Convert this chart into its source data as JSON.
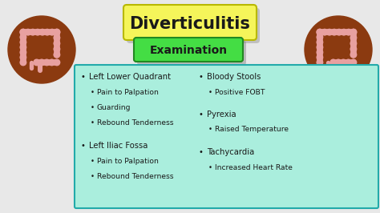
{
  "background_color": "#e8e8e8",
  "title": "Diverticulitis",
  "title_box_color": "#f5f55a",
  "title_box_edge": "#b8b800",
  "subtitle": "Examination",
  "subtitle_box_color": "#44dd44",
  "subtitle_box_edge": "#228822",
  "content_box_color": "#aaeedd",
  "content_box_border": "#22aaaa",
  "text_color": "#1a1a1a",
  "bullet_color": "#1a1a1a",
  "colon_outer": "#8B3a10",
  "colon_inner": "#e8a0a0",
  "title_fontsize": 15,
  "subtitle_fontsize": 10,
  "fs_l0": 7.2,
  "fs_l1": 6.6,
  "left_items": [
    [
      0,
      "Left Lower Quadrant"
    ],
    [
      1,
      "Pain to Palpation"
    ],
    [
      1,
      "Guarding"
    ],
    [
      1,
      "Rebound Tenderness"
    ],
    [
      -1,
      ""
    ],
    [
      0,
      "Left Iliac Fossa"
    ],
    [
      1,
      "Pain to Palpation"
    ],
    [
      1,
      "Rebound Tenderness"
    ]
  ],
  "right_items": [
    [
      0,
      "Bloody Stools"
    ],
    [
      1,
      "Positive FOBT"
    ],
    [
      -1,
      ""
    ],
    [
      0,
      "Pyrexia"
    ],
    [
      1,
      "Raised Temperature"
    ],
    [
      -1,
      ""
    ],
    [
      0,
      "Tachycardia"
    ],
    [
      1,
      "Increased Heart Rate"
    ]
  ]
}
